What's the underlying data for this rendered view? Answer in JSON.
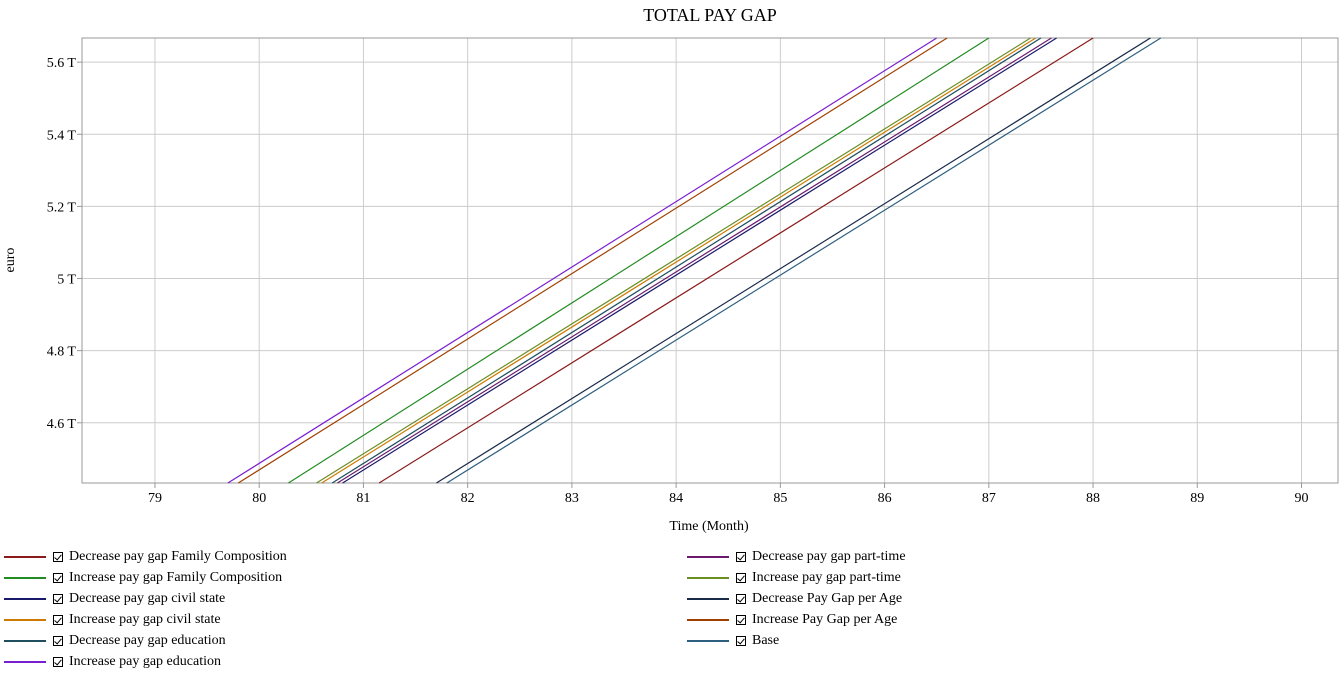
{
  "chart_data": {
    "type": "line",
    "title": "TOTAL PAY GAP",
    "xlabel": "Time (Month)",
    "ylabel": "euro",
    "xlim": [
      78.3,
      90.35
    ],
    "ylim": [
      4.433,
      5.667
    ],
    "x_ticks": [
      79,
      80,
      81,
      82,
      83,
      84,
      85,
      86,
      87,
      88,
      89,
      90
    ],
    "x_tick_labels": [
      "79",
      "80",
      "81",
      "82",
      "83",
      "84",
      "85",
      "86",
      "87",
      "88",
      "89",
      "90"
    ],
    "y_ticks": [
      4.6,
      4.8,
      5.0,
      5.2,
      5.4,
      5.6
    ],
    "y_tick_labels": [
      "4.6 T",
      "4.8 T",
      "5 T",
      "5.2 T",
      "5.4 T",
      "5.6 T"
    ],
    "grid": true,
    "series": [
      {
        "name": "Decrease pay gap Family Composition",
        "color": "#8b1a1a",
        "x": [
          81.15,
          88.0
        ],
        "values": [
          4.433,
          5.667
        ]
      },
      {
        "name": "Decrease pay gap part-time",
        "color": "#6b1a6b",
        "x": [
          80.75,
          87.6
        ],
        "values": [
          4.433,
          5.667
        ]
      },
      {
        "name": "Increase pay gap Family Composition",
        "color": "#228b22",
        "x": [
          80.28,
          87.0
        ],
        "values": [
          4.433,
          5.667
        ]
      },
      {
        "name": "Increase pay gap part-time",
        "color": "#6b8e23",
        "x": [
          80.55,
          87.4
        ],
        "values": [
          4.433,
          5.667
        ]
      },
      {
        "name": "Decrease pay gap civil state",
        "color": "#1a1a6b",
        "x": [
          80.8,
          87.65
        ],
        "values": [
          4.433,
          5.667
        ]
      },
      {
        "name": "Decrease Pay Gap per Age",
        "color": "#1a2b4a",
        "x": [
          81.7,
          88.55
        ],
        "values": [
          4.433,
          5.667
        ]
      },
      {
        "name": "Increase pay gap civil state",
        "color": "#cc7a00",
        "x": [
          80.6,
          87.45
        ],
        "values": [
          4.433,
          5.667
        ]
      },
      {
        "name": "Increase Pay Gap per Age",
        "color": "#a04000",
        "x": [
          79.8,
          86.6
        ],
        "values": [
          4.433,
          5.667
        ]
      },
      {
        "name": "Decrease pay gap education",
        "color": "#1f4f5f",
        "x": [
          80.7,
          87.5
        ],
        "values": [
          4.433,
          5.667
        ]
      },
      {
        "name": "Base",
        "color": "#2f5f7f",
        "x": [
          81.8,
          88.65
        ],
        "values": [
          4.433,
          5.667
        ]
      },
      {
        "name": "Increase pay gap education",
        "color": "#7a1fcf",
        "x": [
          79.7,
          86.5
        ],
        "values": [
          4.433,
          5.667
        ]
      }
    ]
  }
}
